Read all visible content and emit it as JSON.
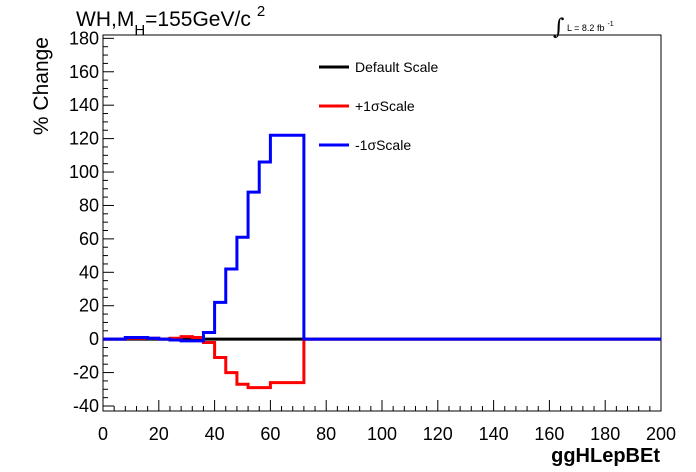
{
  "title": {
    "prefix": "WH,M",
    "subscript": "H",
    "value": "=155GeV/c",
    "superscript": "2"
  },
  "lumi": {
    "integral_symbol": "∫",
    "text": "L = 8.2 fb",
    "superscript": "-1"
  },
  "chart_data": {
    "type": "line",
    "xlabel": "ggHLepBEt",
    "ylabel": "% Change",
    "xlim": [
      0,
      200
    ],
    "ylim": [
      -43,
      182
    ],
    "xticks": [
      0,
      20,
      40,
      60,
      80,
      100,
      120,
      140,
      160,
      180,
      200
    ],
    "yticks": [
      -40,
      -20,
      0,
      20,
      40,
      60,
      80,
      100,
      120,
      140,
      160,
      180
    ],
    "legend_position": "top-center",
    "grid": false,
    "bin_edges": [
      0,
      4,
      8,
      12,
      16,
      20,
      24,
      28,
      32,
      36,
      40,
      44,
      48,
      52,
      56,
      60,
      64,
      68,
      72,
      200
    ],
    "series": [
      {
        "name": "Default Scale",
        "color": "#000000",
        "values": [
          0,
          0,
          0,
          0,
          0,
          0,
          0,
          0,
          0,
          0,
          0,
          0,
          0,
          0,
          0,
          0,
          0,
          0,
          0
        ]
      },
      {
        "name": "+1σScale",
        "color": "#ff0000",
        "values": [
          0,
          0,
          0.5,
          0.5,
          0.5,
          0,
          0.5,
          1.5,
          1,
          -2,
          -11,
          -20,
          -27,
          -29,
          -29,
          -26,
          -26,
          -26,
          0
        ]
      },
      {
        "name": "-1σScale",
        "color": "#0000ff",
        "values": [
          0,
          0,
          1,
          1,
          0.5,
          0,
          -0.5,
          -1,
          -1,
          4,
          22,
          42,
          61,
          88,
          106,
          122,
          122,
          122,
          0
        ]
      }
    ]
  }
}
